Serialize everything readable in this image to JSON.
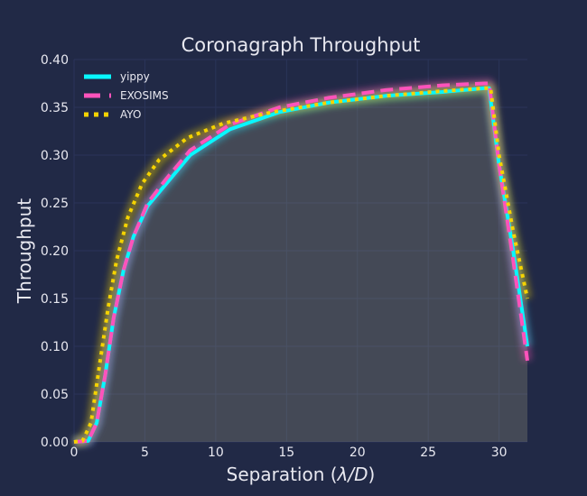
{
  "chart_data": {
    "type": "line",
    "title": "Coronagraph Throughput",
    "xlabel_prefix": "Separation (",
    "xlabel_sym": "λ/D",
    "xlabel_suffix": ")",
    "ylabel": "Throughput",
    "xlim": [
      0,
      32
    ],
    "ylim": [
      0,
      0.4
    ],
    "xticks": [
      0,
      5,
      10,
      15,
      20,
      25,
      30
    ],
    "xtick_labels": [
      "0",
      "5",
      "10",
      "15",
      "20",
      "25",
      "30"
    ],
    "yticks": [
      0,
      0.05,
      0.1,
      0.15,
      0.2,
      0.25,
      0.3,
      0.35,
      0.4
    ],
    "ytick_labels": [
      "0.00",
      "0.05",
      "0.10",
      "0.15",
      "0.20",
      "0.25",
      "0.30",
      "0.35",
      "0.40"
    ],
    "grid": true,
    "legend_position": "top-left",
    "series": [
      {
        "name": "yippy",
        "color": "#08F7FE",
        "style": "solid",
        "x": [
          0,
          1.0,
          1.6,
          2.2,
          2.8,
          3.5,
          4.2,
          5.2,
          6.5,
          8.2,
          11.0,
          14.5,
          18.0,
          22.0,
          26.0,
          29.0,
          29.3,
          30.0,
          31.0,
          32.0
        ],
        "y": [
          0.0,
          0.001,
          0.02,
          0.07,
          0.13,
          0.18,
          0.215,
          0.247,
          0.27,
          0.3,
          0.327,
          0.345,
          0.355,
          0.362,
          0.366,
          0.37,
          0.37,
          0.29,
          0.2,
          0.1
        ]
      },
      {
        "name": "EXOSIMS",
        "color": "#FE53BB",
        "style": "dashed",
        "x": [
          0,
          1.0,
          1.6,
          2.2,
          2.8,
          3.5,
          4.2,
          5.2,
          6.5,
          8.2,
          11.0,
          14.5,
          18.0,
          22.0,
          26.0,
          29.0,
          29.3,
          30.0,
          31.0,
          32.0
        ],
        "y": [
          0.0,
          0.001,
          0.02,
          0.07,
          0.13,
          0.18,
          0.215,
          0.25,
          0.275,
          0.305,
          0.332,
          0.35,
          0.36,
          0.368,
          0.373,
          0.375,
          0.375,
          0.29,
          0.19,
          0.085
        ]
      },
      {
        "name": "AYO",
        "color": "#F5D300",
        "style": "dotted",
        "x": [
          0,
          0.6,
          1.2,
          1.8,
          2.4,
          3.0,
          3.8,
          4.8,
          6.0,
          8.0,
          10.5,
          14.0,
          18.0,
          22.0,
          26.0,
          29.0,
          29.4,
          30.0,
          31.0,
          32.0
        ],
        "y": [
          0.0,
          0.001,
          0.02,
          0.08,
          0.14,
          0.19,
          0.235,
          0.27,
          0.295,
          0.318,
          0.333,
          0.345,
          0.355,
          0.362,
          0.367,
          0.37,
          0.37,
          0.3,
          0.22,
          0.15
        ]
      }
    ]
  }
}
